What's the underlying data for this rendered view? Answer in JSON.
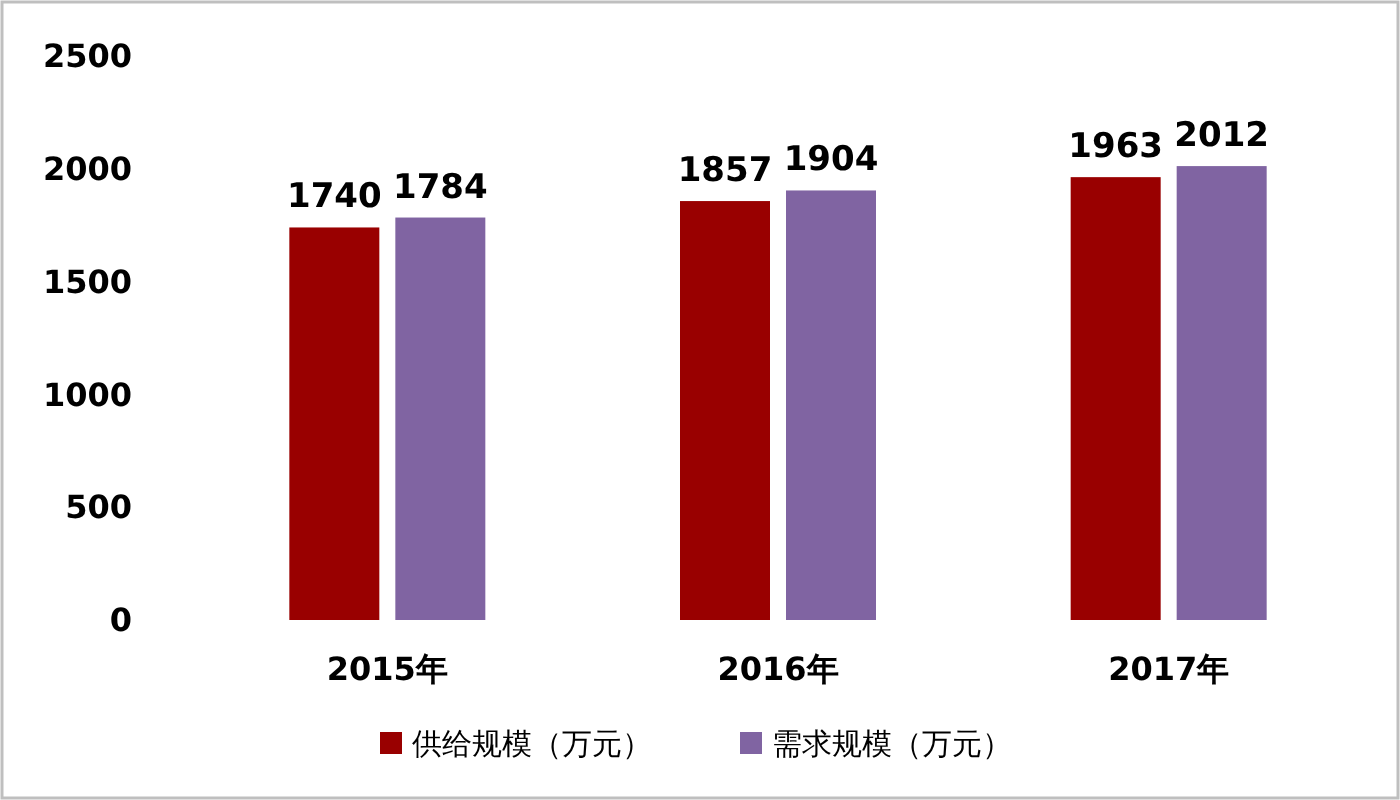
{
  "chart_data": {
    "type": "bar",
    "categories": [
      "2015年",
      "2016年",
      "2017年"
    ],
    "series": [
      {
        "name": "供给规模（万元）",
        "color": "#990000",
        "values": [
          1740,
          1857,
          1963
        ]
      },
      {
        "name": "需求规模（万元）",
        "color": "#8064a2",
        "values": [
          1784,
          1904,
          2012
        ]
      }
    ],
    "ylim": [
      0,
      2500
    ],
    "yticks": [
      0,
      500,
      1000,
      1500,
      2000,
      2500
    ],
    "data_labels": true,
    "legend": "bottom",
    "grid": false
  }
}
